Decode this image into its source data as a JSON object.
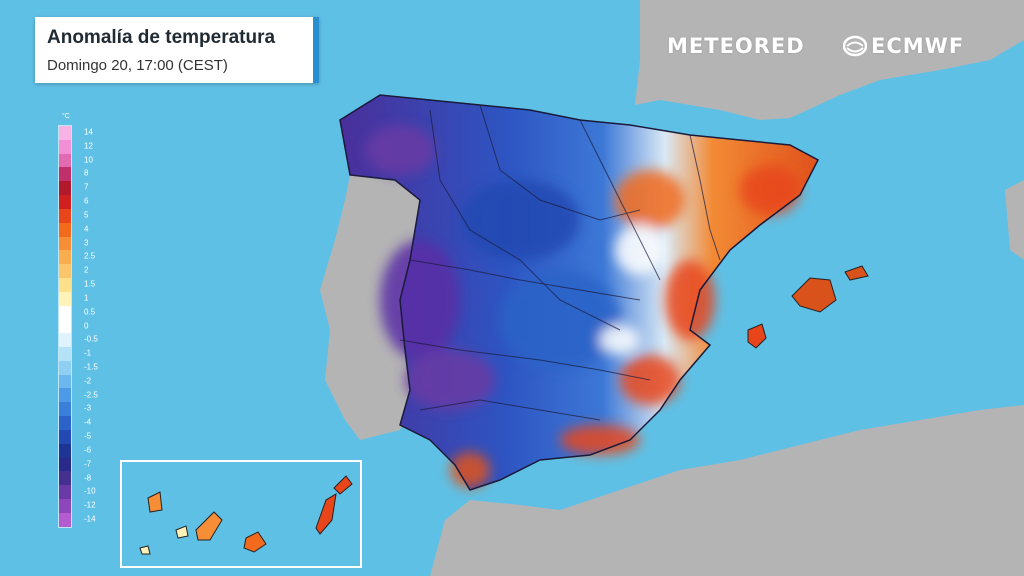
{
  "title": {
    "heading": "Anomalía de temperatura",
    "subtitle": "Domingo 20, 17:00 (CEST)"
  },
  "brands": {
    "meteored": "METEORED",
    "ecmwf": "ECMWF"
  },
  "icons": {
    "ecmwf_logo": "ecmwf-swirl-icon"
  },
  "legend": {
    "unit": "°C",
    "labels": [
      "14",
      "12",
      "10",
      "8",
      "7",
      "6",
      "5",
      "4",
      "3",
      "2.5",
      "2",
      "1.5",
      "1",
      "0.5",
      "0",
      "-0.5",
      "-1",
      "-1.5",
      "-2",
      "-2.5",
      "-3",
      "-4",
      "-5",
      "-6",
      "-7",
      "-8",
      "-10",
      "-12",
      "-14"
    ],
    "colors": [
      "#f7b3e6",
      "#f28fd6",
      "#e06bb0",
      "#c0306a",
      "#b01a2a",
      "#cf1f1f",
      "#e8461a",
      "#f26b1d",
      "#f58e36",
      "#f8ad4e",
      "#fbc66b",
      "#fde08c",
      "#fff2b8",
      "#ffffff",
      "#ffffff",
      "#dff3ff",
      "#b4e3f7",
      "#8fd0f2",
      "#6cb8ee",
      "#4d9be6",
      "#3a7fd9",
      "#2c63c8",
      "#2349b2",
      "#1e3595",
      "#2a2a8a",
      "#45308f",
      "#6a3aa4",
      "#8e47b8",
      "#b45bd0"
    ]
  },
  "colors": {
    "sea": "#5fc0e6",
    "land_gray": "#b4b4b4",
    "accent_blue": "#2a8fd0"
  }
}
